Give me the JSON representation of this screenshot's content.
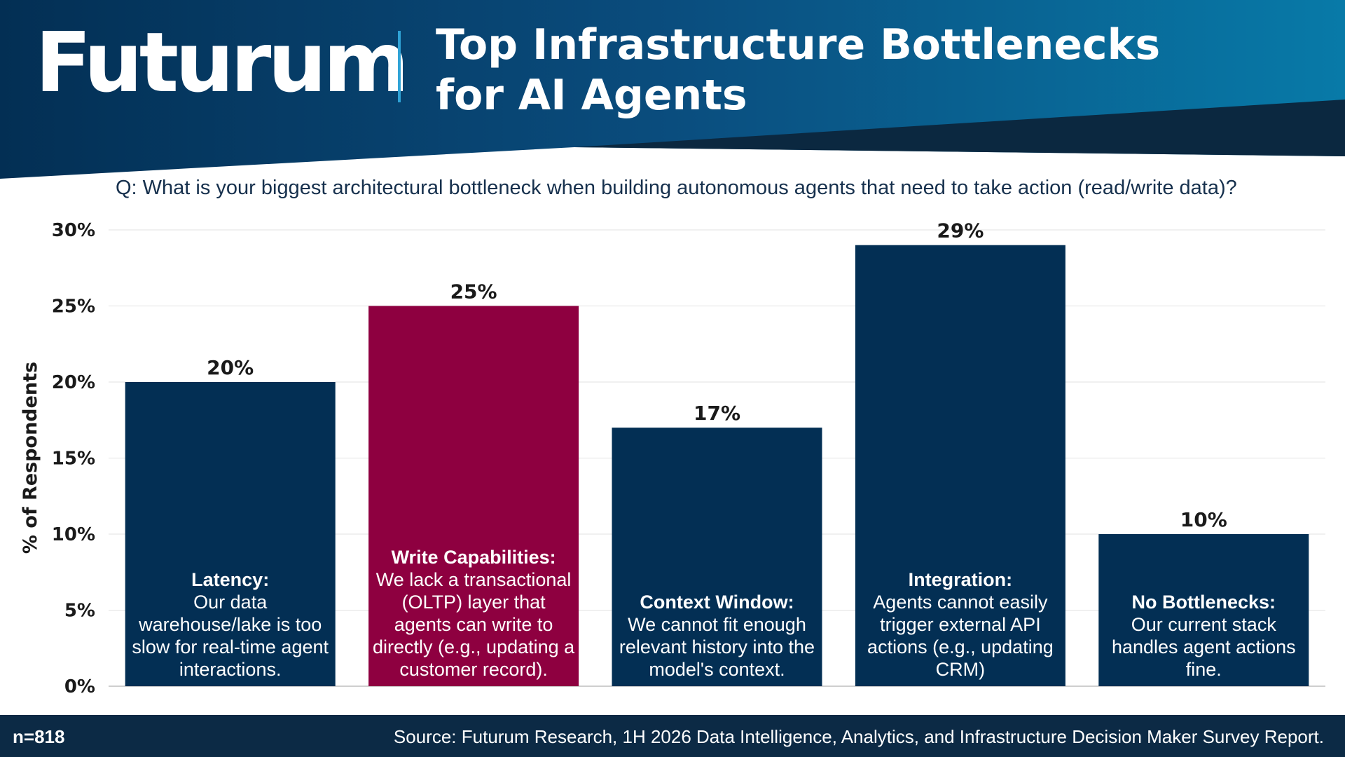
{
  "brand": {
    "logo_text": "Futurum",
    "colors": {
      "navy": "#032f54",
      "blue_right": "#087aa8",
      "highlight": "#8e0040",
      "footer": "#0c2a45"
    }
  },
  "title": "Top Infrastructure Bottlenecks for AI Agents",
  "question": "Q: What is your biggest architectural bottleneck when building autonomous agents that need to take action (read/write data)?",
  "footer": {
    "sample": "n=818",
    "source": "Source: Futurum Research, 1H 2026 Data Intelligence, Analytics, and Infrastructure Decision Maker Survey Report."
  },
  "chart_data": {
    "type": "bar",
    "ylabel": "% of Respondents",
    "ylim": [
      0,
      30
    ],
    "yticks": [
      "0%",
      "5%",
      "10%",
      "15%",
      "20%",
      "25%",
      "30%"
    ],
    "grid": true,
    "categories": [
      "Latency:",
      "Write Capabilities:",
      "Context Window:",
      "Integration:",
      "No Bottlenecks:"
    ],
    "descriptions": [
      "Our data warehouse/lake is too slow for real-time agent interactions.",
      "We lack a transactional (OLTP) layer that agents can write to directly (e.g., updating a customer record).",
      "We cannot fit enough relevant history into the model's context.",
      "Agents cannot easily trigger external API actions (e.g., updating CRM)",
      "Our current stack handles agent actions fine."
    ],
    "values": [
      20,
      25,
      17,
      29,
      10
    ],
    "value_labels": [
      "20%",
      "25%",
      "17%",
      "29%",
      "10%"
    ],
    "colors": [
      "#032f54",
      "#8e0040",
      "#032f54",
      "#032f54",
      "#032f54"
    ]
  }
}
